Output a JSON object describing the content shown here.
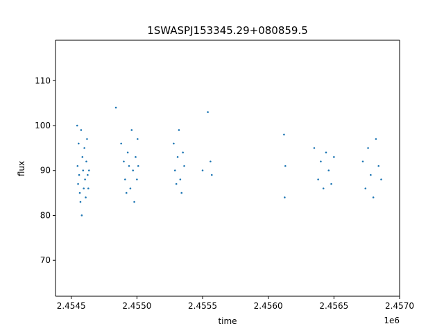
{
  "chart_data": {
    "type": "scatter",
    "title": "1SWASPJ153345.29+080859.5",
    "xlabel": "time",
    "ylabel": "flux",
    "x_offset_label": "1e6",
    "x_ticks": [
      {
        "value": 2454500,
        "label": "2.4545"
      },
      {
        "value": 2455000,
        "label": "2.4550"
      },
      {
        "value": 2455500,
        "label": "2.4555"
      },
      {
        "value": 2456000,
        "label": "2.4560"
      },
      {
        "value": 2456500,
        "label": "2.4565"
      },
      {
        "value": 2457000,
        "label": "2.4570"
      }
    ],
    "y_ticks": [
      {
        "value": 70,
        "label": "70"
      },
      {
        "value": 80,
        "label": "80"
      },
      {
        "value": 90,
        "label": "90"
      },
      {
        "value": 100,
        "label": "100"
      },
      {
        "value": 110,
        "label": "110"
      }
    ],
    "xlim": [
      2454380,
      2457000
    ],
    "ylim": [
      62,
      119
    ],
    "grid": false,
    "marker_color": "#1f77b4",
    "series": [
      {
        "x": [
          2454545,
          2454548,
          2454552,
          2454556,
          2454560,
          2454565,
          2454570,
          2454575,
          2454580,
          2454585,
          2454590,
          2454595,
          2454600,
          2454605,
          2454610,
          2454615,
          2454620,
          2454625,
          2454630,
          2454635,
          2454840,
          2454880,
          2454900,
          2454910,
          2454920,
          2454930,
          2454940,
          2454950,
          2454960,
          2454970,
          2454980,
          2454990,
          2455000,
          2455005,
          2455010,
          2455280,
          2455290,
          2455300,
          2455310,
          2455320,
          2455330,
          2455340,
          2455350,
          2455360,
          2455500,
          2455540,
          2455560,
          2455570,
          2456120,
          2456125,
          2456130,
          2456350,
          2456380,
          2456400,
          2456420,
          2456440,
          2456460,
          2456480,
          2456500,
          2456720,
          2456740,
          2456760,
          2456780,
          2456800,
          2456820,
          2456840,
          2456860
        ],
        "y": [
          100,
          91,
          87,
          96,
          89,
          85,
          83,
          99,
          80,
          93,
          90,
          86,
          95,
          88,
          84,
          92,
          97,
          89,
          86,
          90,
          104,
          96,
          92,
          88,
          85,
          94,
          91,
          86,
          99,
          90,
          83,
          93,
          88,
          97,
          91,
          96,
          90,
          87,
          93,
          99,
          88,
          85,
          94,
          91,
          90,
          103,
          92,
          89,
          98,
          84,
          91,
          95,
          88,
          92,
          86,
          94,
          90,
          87,
          93,
          92,
          86,
          95,
          89,
          84,
          97,
          91,
          88
        ]
      }
    ]
  }
}
